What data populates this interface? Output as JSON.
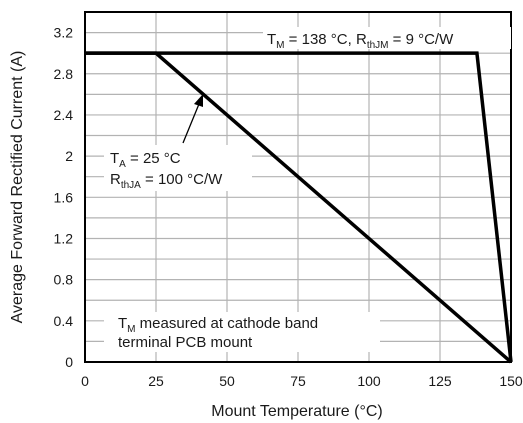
{
  "chart_data": {
    "type": "line",
    "title": "",
    "xlabel": "Mount Temperature (°C)",
    "ylabel": "Average Forward Rectified Current (A)",
    "xlim": [
      0,
      150
    ],
    "ylim": [
      0,
      3.4
    ],
    "xticks": [
      0,
      25,
      50,
      75,
      100,
      125,
      150
    ],
    "xtick_labels": [
      "0",
      "25",
      "50",
      "75",
      "100",
      "125",
      "150"
    ],
    "yticks": [
      0,
      0.4,
      0.8,
      1.2,
      1.6,
      2,
      2.4,
      2.8,
      3.2
    ],
    "ytick_labels": [
      "0",
      "0.4",
      "0.8",
      "1.2",
      "1.6",
      "2",
      "2.4",
      "2.8",
      "3.2"
    ],
    "grid": true,
    "series": [
      {
        "name": "TM = 138 °C, RthJM = 9 °C/W",
        "x": [
          0,
          138,
          150
        ],
        "y": [
          3.0,
          3.0,
          0
        ]
      },
      {
        "name": "TA = 25 °C, RthJA = 100 °C/W",
        "x": [
          0,
          25,
          150
        ],
        "y": [
          3.0,
          3.0,
          0
        ]
      }
    ],
    "annotations": {
      "mount": {
        "main": "T",
        "sub": "M",
        "rest": " = 138 °C, R",
        "sub2": "thJM",
        "rest2": " = 9 °C/W"
      },
      "ambient_line1": {
        "main": "T",
        "sub": "A",
        "rest": " = 25 °C"
      },
      "ambient_line2": {
        "main": "R",
        "sub": "thJA",
        "rest": " = 100 °C/W"
      },
      "note_line1": {
        "main": "T",
        "sub": "M",
        "rest": " measured at cathode band"
      },
      "note_line2": "terminal PCB mount"
    },
    "colors": {
      "grid": "#b3b3b3",
      "line": "#000000",
      "frame": "#000000"
    }
  }
}
